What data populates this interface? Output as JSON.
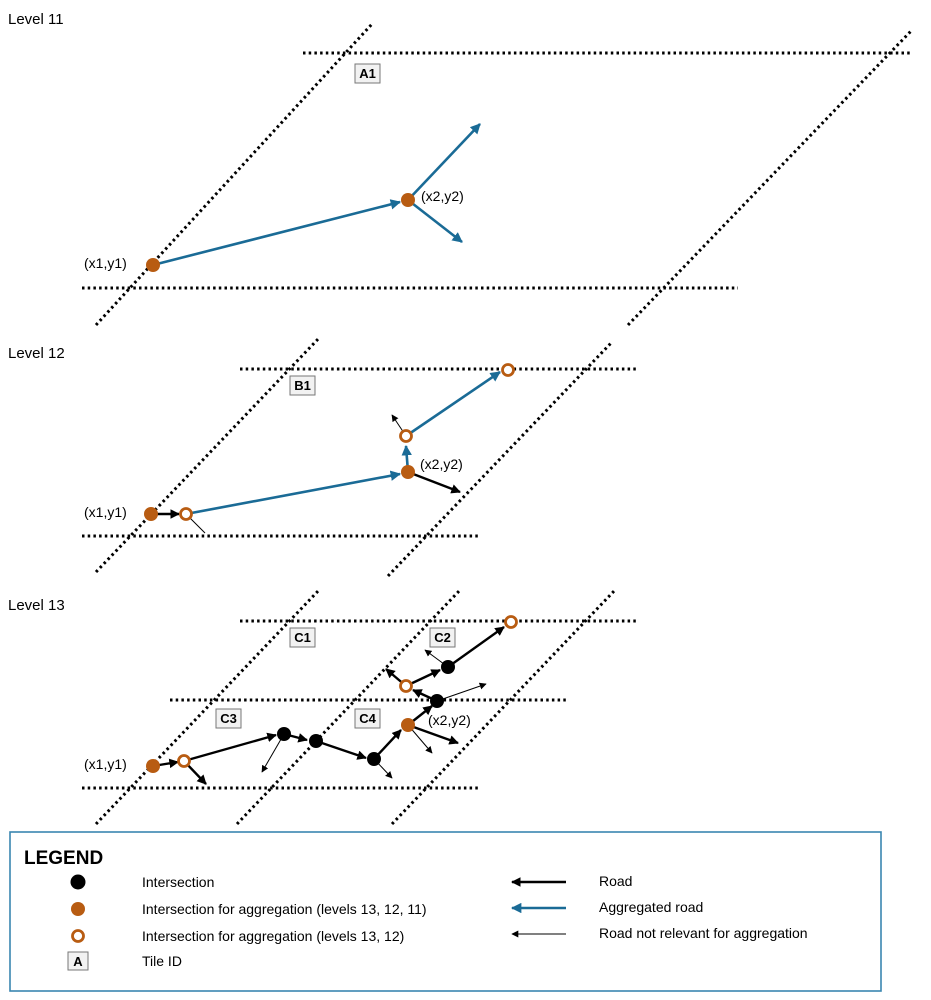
{
  "levels": [
    {
      "label": "Level 11",
      "tiles": [
        "A1"
      ],
      "start_label": "(x1,y1)",
      "end_label": "(x2,y2)"
    },
    {
      "label": "Level 12",
      "tiles": [
        "B1"
      ],
      "start_label": "(x1,y1)",
      "end_label": "(x2,y2)"
    },
    {
      "label": "Level 13",
      "tiles": [
        "C1",
        "C2",
        "C3",
        "C4"
      ],
      "start_label": "(x1,y1)",
      "end_label": "(x2,y2)"
    }
  ],
  "legend": {
    "title": "LEGEND",
    "items": [
      {
        "symbol": "black-dot",
        "label": "Intersection"
      },
      {
        "symbol": "orange-dot",
        "label": "Intersection for aggregation (levels 13, 12, 11)"
      },
      {
        "symbol": "orange-ring",
        "label": "Intersection for aggregation (levels 13, 12)"
      },
      {
        "symbol": "tile-box",
        "symbol_text": "A",
        "label": "Tile ID"
      },
      {
        "symbol": "road-arrow",
        "label": "Road"
      },
      {
        "symbol": "aggregated-arrow",
        "label": "Aggregated road"
      },
      {
        "symbol": "thin-arrow",
        "label": "Road not relevant for aggregation"
      }
    ]
  },
  "colors": {
    "aggregation": "#b85c12",
    "aggregated_road": "#1a6b96",
    "road": "#000000",
    "legend_border": "#3a86b0"
  }
}
